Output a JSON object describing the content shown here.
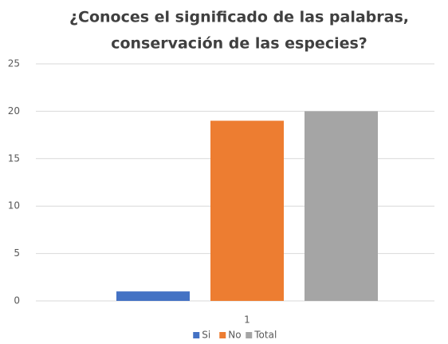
{
  "chart_data": {
    "type": "bar",
    "title": [
      "¿Conoces el significado de las palabras,",
      "conservación de las especies?"
    ],
    "categories": [
      "1"
    ],
    "series": [
      {
        "name": "Si",
        "color": "#4472c4",
        "values": [
          1
        ]
      },
      {
        "name": "No",
        "color": "#ed7d31",
        "values": [
          19
        ]
      },
      {
        "name": "Total",
        "color": "#a5a5a5",
        "values": [
          20
        ]
      }
    ],
    "ylim": [
      0,
      25
    ],
    "yticks": [
      0,
      5,
      10,
      15,
      20,
      25
    ],
    "grid": true,
    "legend": "bottom"
  }
}
